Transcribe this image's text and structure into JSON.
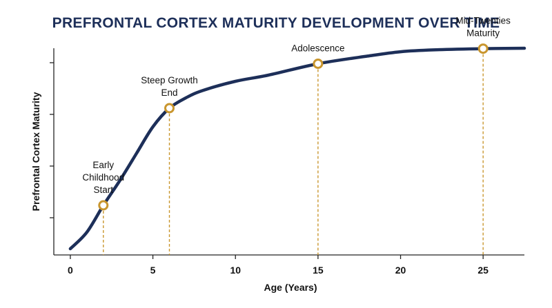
{
  "chart_data": {
    "type": "line",
    "title": "PREFRONTAL CORTEX MATURITY DEVELOPMENT OVER TIME",
    "xlabel": "Age (Years)",
    "ylabel": "Prefrontal Cortex Maturity",
    "xlim": [
      -1,
      27.5
    ],
    "ylim": [
      0,
      10
    ],
    "x_ticks": [
      0,
      5,
      10,
      15,
      20,
      25
    ],
    "x_tick_labels": [
      "0",
      "5",
      "10",
      "15",
      "20",
      "25"
    ],
    "y_ticks": [
      1.8,
      4.3,
      6.8,
      9.3
    ],
    "y_tick_labels": [
      "",
      "",
      "",
      ""
    ],
    "grid": false,
    "legend": "none",
    "colors": {
      "line": "#1d2f59",
      "marker": "#c9962e",
      "title": "#1d2f59"
    },
    "series": [
      {
        "x": [
          0,
          1,
          2,
          3,
          4,
          5,
          6,
          7,
          8,
          10,
          12,
          15,
          18,
          20,
          22,
          25,
          27.5
        ],
        "values": [
          0.3,
          1.1,
          2.4,
          3.6,
          4.9,
          6.2,
          7.1,
          7.6,
          7.95,
          8.4,
          8.7,
          9.25,
          9.62,
          9.83,
          9.92,
          9.98,
          10.0
        ]
      }
    ],
    "annotations": [
      {
        "x": 2,
        "y": 2.4,
        "lines": [
          "Early",
          "Childhood",
          "Start"
        ]
      },
      {
        "x": 6,
        "y": 7.1,
        "lines": [
          "Steep Growth",
          "End"
        ]
      },
      {
        "x": 15,
        "y": 9.25,
        "lines": [
          "Adolescence"
        ]
      },
      {
        "x": 25,
        "y": 9.98,
        "lines": [
          "Mid-Twenties",
          "Maturity"
        ]
      }
    ]
  }
}
